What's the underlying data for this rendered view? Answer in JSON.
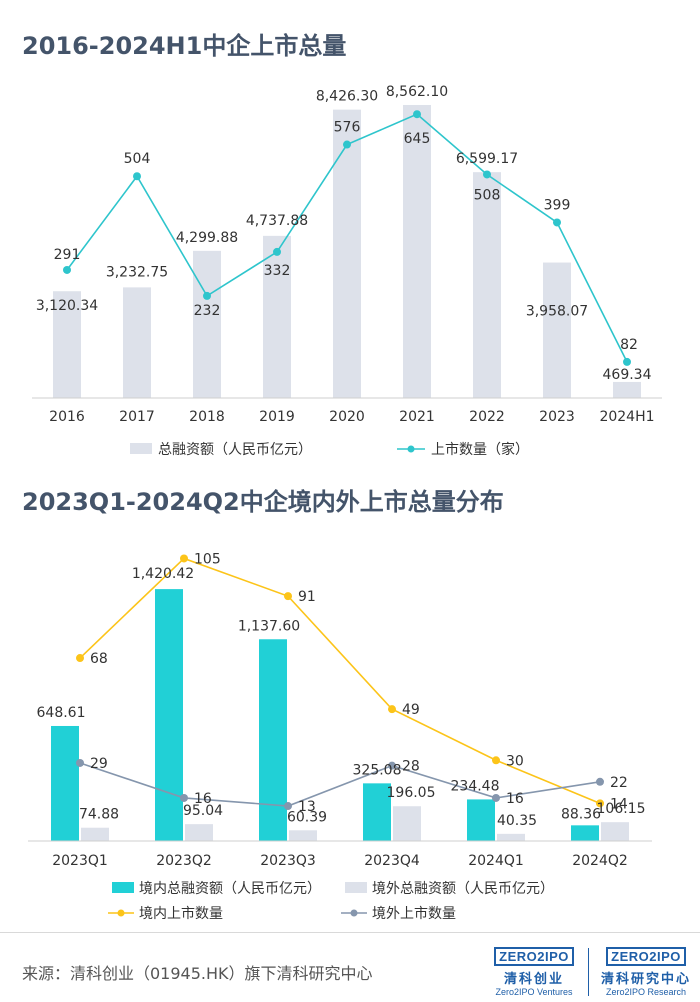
{
  "chart_data": [
    {
      "type": "bar+line",
      "title": "2016-2024H1中企上市总量",
      "categories": [
        "2016",
        "2017",
        "2018",
        "2019",
        "2020",
        "2021",
        "2022",
        "2023",
        "2024H1"
      ],
      "series": [
        {
          "name": "总融资额（人民币亿元）",
          "kind": "bar",
          "color": "#dde1ea",
          "values": [
            3120.34,
            3232.75,
            4299.88,
            4737.88,
            8426.3,
            8562.1,
            6599.17,
            3958.07,
            469.34
          ],
          "labels": [
            "3,120.34",
            "3,232.75",
            "4,299.88",
            "4,737.88",
            "8,426.30",
            "8,562.10",
            "6,599.17",
            "3,958.07",
            "469.34"
          ]
        },
        {
          "name": "上市数量（家）",
          "kind": "line",
          "color": "#2ec5cc",
          "values": [
            291,
            504,
            232,
            332,
            576,
            645,
            508,
            399,
            82
          ],
          "labels": [
            "291",
            "504",
            "232",
            "332",
            "576",
            "645",
            "508",
            "399",
            "82"
          ]
        }
      ],
      "bar_ylim": [
        0,
        9000
      ],
      "line_ylim": [
        0,
        700
      ],
      "legend_position": "bottom"
    },
    {
      "type": "bar+line",
      "title": "2023Q1-2024Q2中企境内外上市总量分布",
      "categories": [
        "2023Q1",
        "2023Q2",
        "2023Q3",
        "2023Q4",
        "2024Q1",
        "2024Q2"
      ],
      "series": [
        {
          "name": "境内总融资额（人民币亿元）",
          "kind": "bar",
          "color": "#21d0d6",
          "values": [
            648.61,
            1420.42,
            1137.6,
            325.08,
            234.48,
            88.36
          ],
          "labels": [
            "648.61",
            "1,420.42",
            "1,137.60",
            "325.08",
            "234.48",
            "88.36"
          ]
        },
        {
          "name": "境外总融资额（人民币亿元）",
          "kind": "bar",
          "color": "#dde1ea",
          "values": [
            74.88,
            95.04,
            60.39,
            196.05,
            40.35,
            106.15
          ],
          "labels": [
            "74.88",
            "95.04",
            "60.39",
            "196.05",
            "40.35",
            "106.15"
          ]
        },
        {
          "name": "境内上市数量",
          "kind": "line",
          "color": "#fcc419",
          "values": [
            68,
            105,
            91,
            49,
            30,
            14
          ],
          "labels": [
            "68",
            "105",
            "91",
            "49",
            "30",
            "14"
          ]
        },
        {
          "name": "境外上市数量",
          "kind": "line",
          "color": "#8596ad",
          "values": [
            29,
            16,
            13,
            28,
            16,
            22
          ],
          "labels": [
            "29",
            "16",
            "13",
            "28",
            "16",
            "22"
          ]
        }
      ],
      "bar_ylim": [
        0,
        1500
      ],
      "line_ylim": [
        0,
        110
      ],
      "legend_position": "bottom"
    }
  ],
  "footer": {
    "source": "来源：清科创业（01945.HK）旗下清科研究中心",
    "logo1": {
      "mark": "ZERO2IPO",
      "cn": "清科创业",
      "en": "Zero2IPO Ventures"
    },
    "logo2": {
      "mark": "ZERO2IPO",
      "cn": "清科研究中心",
      "en": "Zero2IPO Research"
    }
  }
}
